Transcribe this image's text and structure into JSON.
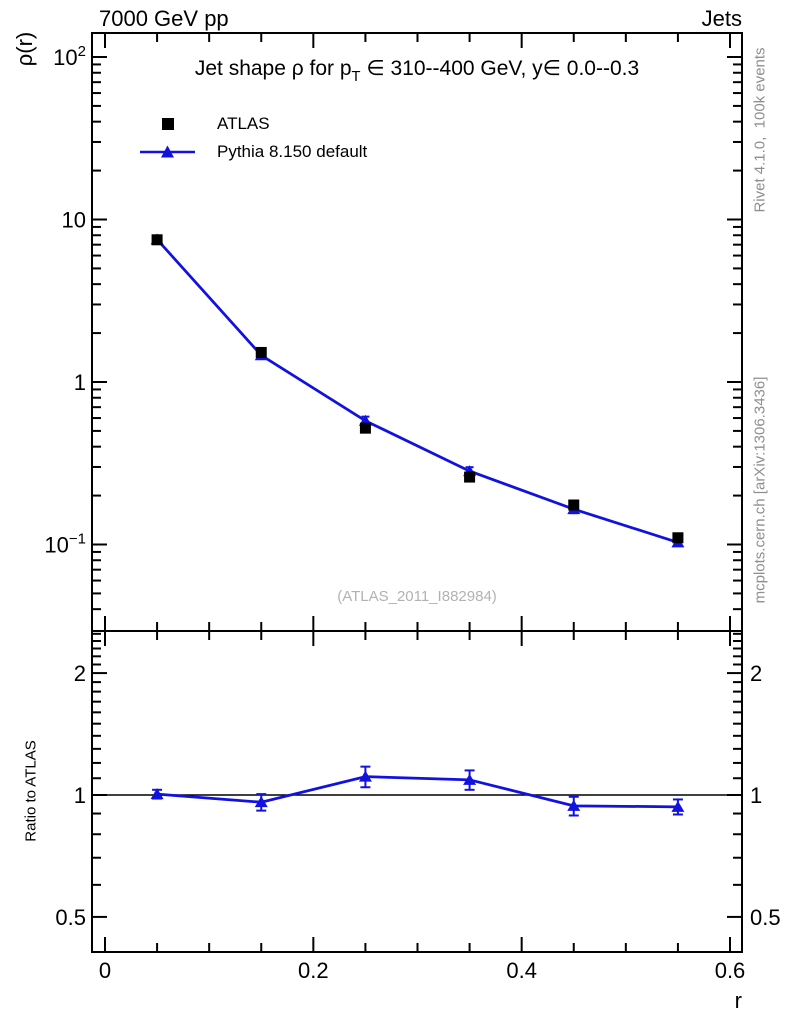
{
  "header": {
    "left": "7000 GeV pp",
    "right": "Jets"
  },
  "side_notes": {
    "top": "Rivet 4.1.0,  100k events",
    "bottom": "mcplots.cern.ch [arXiv:1306.3436]"
  },
  "watermark": "(ATLAS_2011_I882984)",
  "colors": {
    "blue": "#1212e0",
    "black": "#000000",
    "gray_text": "#8f8f8f",
    "watermark_gray": "#b2b2b2"
  },
  "chart_data": {
    "type": "line",
    "title": {
      "part1": "Jet shape ρ for p",
      "sub": "T",
      "part2": " ∈ 310--400 GeV, y∈ 0.0--0.3"
    },
    "xlabel": "r",
    "ylabel": "ρ(r)",
    "ratio_label": "Ratio to ATLAS",
    "x": [
      0.05,
      0.15,
      0.25,
      0.35,
      0.45,
      0.55
    ],
    "series": [
      {
        "name": "ATLAS",
        "marker": "square",
        "color": "#000000",
        "values": [
          7.5,
          1.52,
          0.52,
          0.26,
          0.175,
          0.11
        ]
      },
      {
        "name": "Pythia 8.150 default",
        "marker": "triangle",
        "color": "#1212e0",
        "values": [
          7.54,
          1.46,
          0.577,
          0.283,
          0.165,
          0.103
        ],
        "errors": [
          0.1,
          0.05,
          0.035,
          0.016,
          0.009,
          0.005
        ]
      }
    ],
    "ratio": {
      "name": "Pythia 8.150 default / ATLAS",
      "values": [
        1.005,
        0.96,
        1.11,
        1.09,
        0.94,
        0.935
      ],
      "errors": [
        0.025,
        0.045,
        0.065,
        0.06,
        0.05,
        0.04
      ],
      "reference": 1
    },
    "axes": {
      "x": {
        "lim": [
          -0.0125,
          0.6115
        ],
        "major": [
          0,
          0.2,
          0.4,
          0.6
        ],
        "minor_step": 0.05,
        "tick_labels": [
          "0",
          "0.2",
          "0.4",
          "0.6"
        ]
      },
      "main_y": {
        "scale": "log",
        "lim": [
          0.0294,
          140
        ],
        "ticks": [
          {
            "v": 100,
            "base": "10",
            "exp": "2"
          },
          {
            "v": 10,
            "label": "10"
          },
          {
            "v": 1,
            "label": "1"
          },
          {
            "v": 0.1,
            "base": "10",
            "exp": "−1"
          }
        ]
      },
      "ratio_y": {
        "scale": "log",
        "lim": [
          0.41,
          2.54
        ],
        "ticks": [
          {
            "v": 2,
            "label": "2"
          },
          {
            "v": 1,
            "label": "1"
          },
          {
            "v": 0.5,
            "label": "0.5"
          }
        ],
        "minor": [
          0.6,
          0.7,
          0.8,
          0.9,
          1.1,
          1.2,
          1.3,
          1.4,
          1.5,
          1.6,
          1.7,
          1.8,
          1.9,
          2.1,
          2.2,
          2.3,
          2.4,
          2.5
        ]
      },
      "grid": false,
      "legend_position": "top-left-inside"
    }
  }
}
